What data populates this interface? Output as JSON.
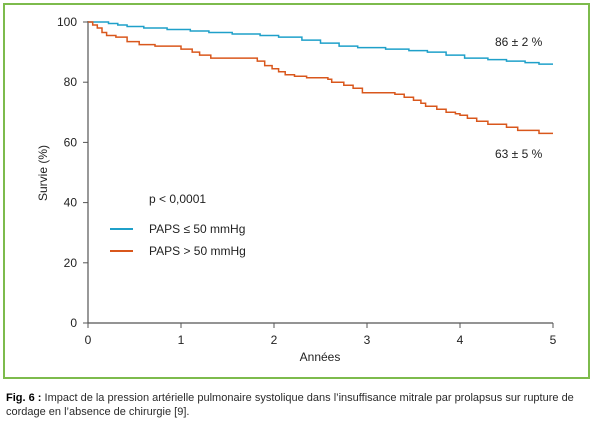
{
  "chart_data": {
    "type": "line",
    "title": "",
    "xlabel": "Années",
    "ylabel": "Survie (%)",
    "xlim": [
      0,
      5
    ],
    "ylim": [
      0,
      100
    ],
    "xticks": [
      0,
      1,
      2,
      3,
      4,
      5
    ],
    "yticks": [
      0,
      20,
      40,
      60,
      80,
      100
    ],
    "grid": false,
    "annotation": "p < 0,0001",
    "legend_position": "center-left",
    "series": [
      {
        "name": "PAPS ≤ 50 mmHg",
        "color": "#1fa0c9",
        "end_label": "86 ± 2 %",
        "x": [
          0,
          0.22,
          0.32,
          0.42,
          0.6,
          0.85,
          1.1,
          1.3,
          1.55,
          1.85,
          2.05,
          2.3,
          2.5,
          2.7,
          2.9,
          3.2,
          3.45,
          3.65,
          3.85,
          4.05,
          4.3,
          4.5,
          4.7,
          4.85,
          4.95
        ],
        "y": [
          100,
          99.5,
          99,
          98.5,
          98,
          97.5,
          97,
          96.5,
          96,
          95.5,
          95,
          94,
          93,
          92,
          91.5,
          91,
          90.5,
          90,
          89,
          88,
          87.5,
          87,
          86.5,
          86,
          86
        ]
      },
      {
        "name": "PAPS > 50 mmHg",
        "color": "#d9571c",
        "end_label": "63 ± 5 %",
        "x": [
          0,
          0.05,
          0.1,
          0.15,
          0.2,
          0.3,
          0.42,
          0.55,
          0.72,
          0.92,
          1.0,
          1.12,
          1.2,
          1.32,
          1.82,
          1.9,
          1.98,
          2.05,
          2.12,
          2.22,
          2.35,
          2.58,
          2.62,
          2.75,
          2.85,
          2.95,
          3.3,
          3.4,
          3.5,
          3.58,
          3.63,
          3.75,
          3.85,
          3.95,
          4.0,
          4.08,
          4.18,
          4.3,
          4.5,
          4.62,
          4.85,
          4.95
        ],
        "y": [
          100,
          99,
          98,
          96.5,
          95.5,
          95,
          93.5,
          92.5,
          92,
          92,
          91,
          90,
          89,
          88,
          87,
          85.5,
          84.5,
          83.5,
          82.5,
          82,
          81.5,
          81,
          80,
          79,
          78,
          76.5,
          76,
          75,
          74,
          73,
          72,
          71,
          70,
          69.5,
          69,
          68,
          67,
          66,
          65,
          64,
          63,
          63
        ]
      }
    ]
  },
  "caption": {
    "label": "Fig. 6 :",
    "text": " Impact de la pression artérielle pulmonaire systolique dans l’insuffisance mitrale par prolapsus sur rupture de cordage en l’absence de chirurgie [9]."
  }
}
